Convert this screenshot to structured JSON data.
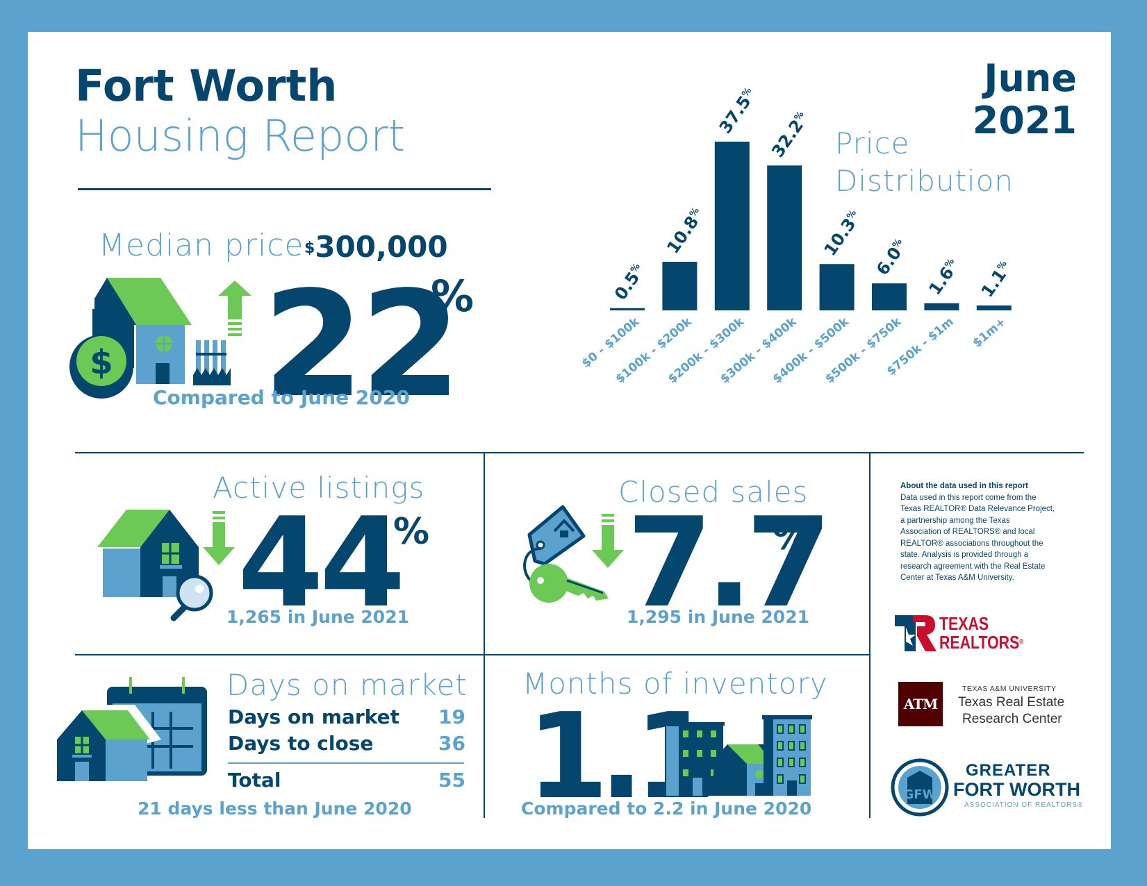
{
  "header": {
    "title_line1": "Fort Worth",
    "title_line2": "Housing Report",
    "month": "June",
    "year": "2021"
  },
  "colors": {
    "navy": "#05466e",
    "light_blue": "#5ba2cf",
    "green": "#6cc955",
    "maroon": "#500000",
    "red": "#c8102e"
  },
  "median": {
    "label": "Median price",
    "currency": "$",
    "value": "300,000",
    "change": "22",
    "pct_sign": "%",
    "direction": "up",
    "note": "Compared to June 2020",
    "icons": [
      "house-icon",
      "dollar-coin-icon",
      "fence-icon",
      "arrow-up-icon"
    ]
  },
  "chart_data": {
    "type": "bar",
    "title": "Price Distribution",
    "title_line1": "Price",
    "title_line2": "Distribution",
    "categories": [
      "$0 - $100k",
      "$100k - $200k",
      "$200k - $300k",
      "$300k - $400k",
      "$400k - $500k",
      "$500k - $750k",
      "$750k - $1m",
      "$1m+"
    ],
    "values": [
      0.5,
      10.8,
      37.5,
      32.2,
      10.3,
      6.0,
      1.6,
      1.1
    ],
    "value_labels": [
      "0.5",
      "10.8",
      "37.5",
      "32.2",
      "10.3",
      "6.0",
      "1.6",
      "1.1"
    ],
    "unit": "%",
    "xlabel": "",
    "ylabel": "",
    "ylim": [
      0,
      37.5
    ],
    "grid": false,
    "legend": "none"
  },
  "active_listings": {
    "label": "Active listings",
    "change": "44",
    "pct_sign": "%",
    "direction": "down",
    "note": "1,265 in June 2021"
  },
  "closed_sales": {
    "label": "Closed sales",
    "change": "7.7",
    "pct_sign": "%",
    "direction": "down",
    "note": "1,295 in June 2021"
  },
  "days_on_market": {
    "label": "Days on market",
    "rows": [
      {
        "label": "Days on market",
        "value": "19"
      },
      {
        "label": "Days to close",
        "value": "36"
      }
    ],
    "total": {
      "label": "Total",
      "value": "55"
    },
    "note": "21 days less than June 2020"
  },
  "months_inventory": {
    "label": "Months of inventory",
    "value": "1.1",
    "note": "Compared to 2.2 in June 2020"
  },
  "about": {
    "heading": "About the data used in this report",
    "lines": [
      "Data used in this report come from the",
      "Texas REALTOR® Data Relevance Project,",
      "a partnership among the Texas",
      "Association of REALTORS® and local",
      "REALTOR® associations throughout the",
      "state. Analysis is provided through a",
      "research agreement with the Real Estate",
      "Center at Texas A&M University."
    ]
  },
  "logos": {
    "texas_realtors": {
      "line1": "TEXAS",
      "line2": "REALTORS",
      "mark": "®"
    },
    "tamu": {
      "mark": "ATM",
      "sub": "TEXAS A&M UNIVERSITY",
      "line1": "Texas Real Estate",
      "line2": "Research Center"
    },
    "gfw": {
      "mark": "GFW",
      "line1": "GREATER",
      "line2": "FORT WORTH",
      "line3": "ASSOCIATION OF REALTORS®"
    }
  }
}
